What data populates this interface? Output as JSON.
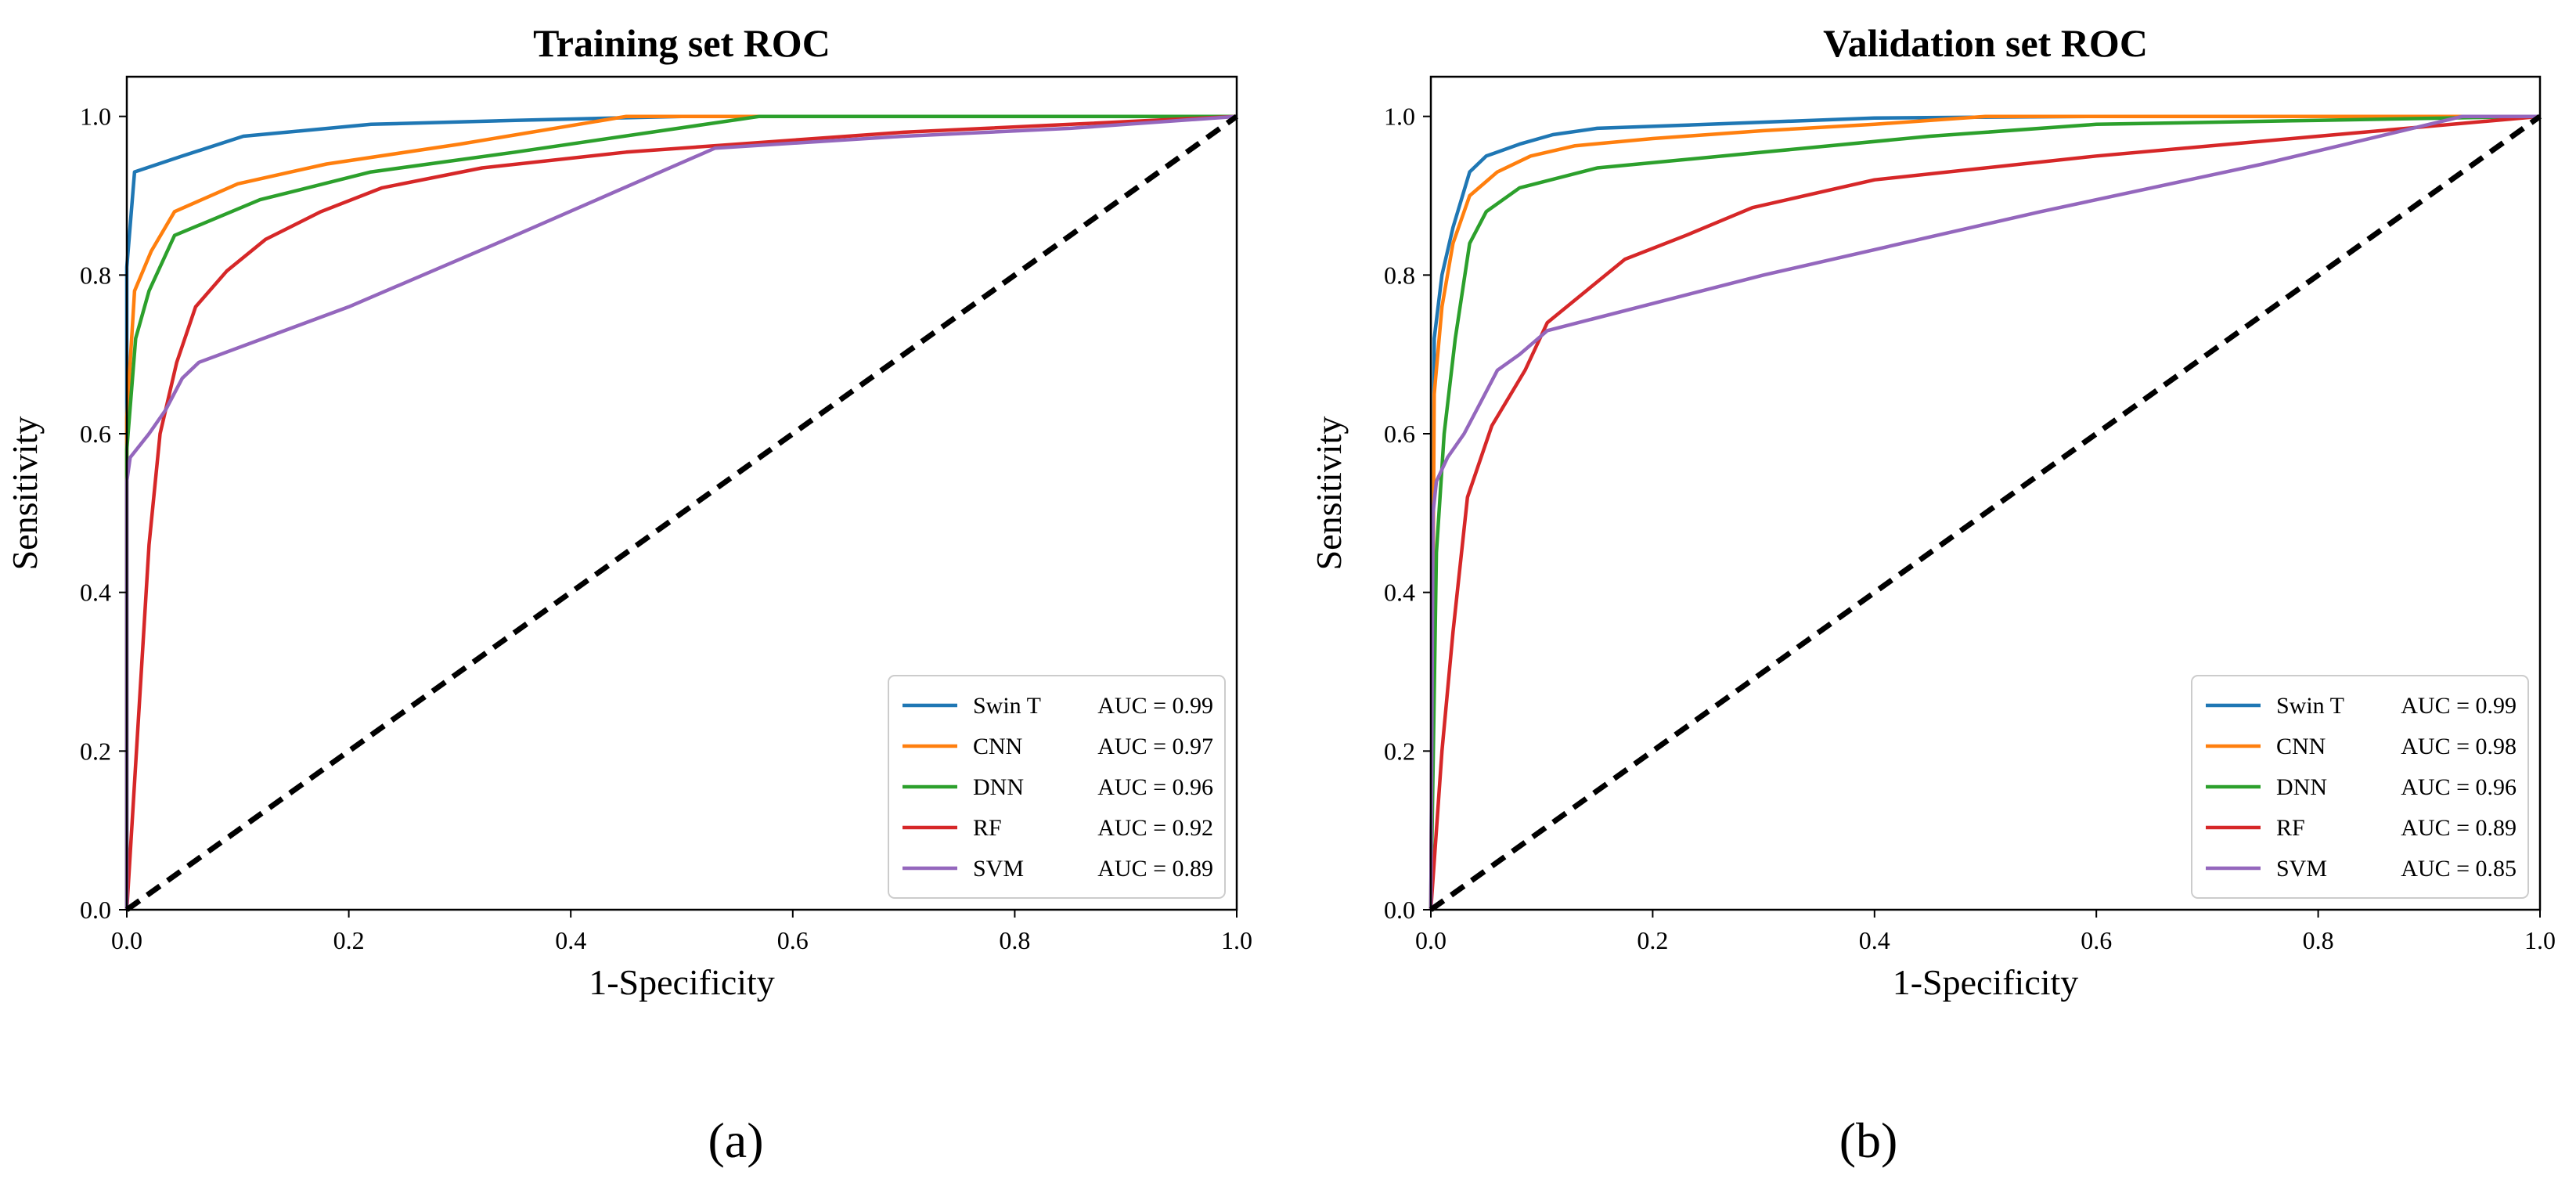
{
  "colors": {
    "swin_t": "#1f77b4",
    "cnn": "#ff7f0e",
    "dnn": "#2ca02c",
    "rf": "#d62728",
    "svm": "#9467bd",
    "diagonal": "#000000"
  },
  "panels": [
    {
      "caption": "(a)",
      "legend_position": "lower-right"
    },
    {
      "caption": "(b)",
      "legend_position": "lower-right"
    }
  ],
  "chart_data": [
    {
      "type": "line",
      "title": "Training set ROC",
      "xlabel": "1-Specificity",
      "ylabel": "Sensitivity",
      "xlim": [
        0.0,
        1.0
      ],
      "ylim": [
        0.0,
        1.05
      ],
      "xticks": [
        "0.0",
        "0.2",
        "0.4",
        "0.6",
        "0.8",
        "1.0"
      ],
      "yticks": [
        "0.0",
        "0.2",
        "0.4",
        "0.6",
        "0.8",
        "1.0"
      ],
      "grid": false,
      "legend_position": "lower-right",
      "series": [
        {
          "name": "Swin T",
          "auc_label": "AUC = 0.99",
          "color_key": "swin_t",
          "x": [
            0.0,
            0.0,
            0.007,
            0.05,
            0.105,
            0.22,
            0.35,
            0.5,
            1.0
          ],
          "y": [
            0.0,
            0.81,
            0.93,
            0.95,
            0.975,
            0.99,
            0.995,
            1.0,
            1.0
          ]
        },
        {
          "name": "CNN",
          "auc_label": "AUC = 0.97",
          "color_key": "cnn",
          "x": [
            0.0,
            0.0,
            0.007,
            0.022,
            0.043,
            0.1,
            0.18,
            0.3,
            0.45,
            0.6,
            1.0
          ],
          "y": [
            0.0,
            0.62,
            0.78,
            0.83,
            0.88,
            0.915,
            0.94,
            0.965,
            1.0,
            1.0,
            1.0
          ]
        },
        {
          "name": "DNN",
          "auc_label": "AUC = 0.96",
          "color_key": "dnn",
          "x": [
            0.0,
            0.0,
            0.008,
            0.02,
            0.043,
            0.12,
            0.22,
            0.35,
            0.57,
            0.7,
            1.0
          ],
          "y": [
            0.0,
            0.58,
            0.72,
            0.78,
            0.85,
            0.895,
            0.93,
            0.955,
            1.0,
            1.0,
            1.0
          ]
        },
        {
          "name": "RF",
          "auc_label": "AUC = 0.92",
          "color_key": "rf",
          "x": [
            0.0,
            0.02,
            0.03,
            0.045,
            0.062,
            0.09,
            0.125,
            0.175,
            0.23,
            0.32,
            0.45,
            0.55,
            0.7,
            1.0
          ],
          "y": [
            0.0,
            0.46,
            0.6,
            0.69,
            0.76,
            0.805,
            0.845,
            0.88,
            0.91,
            0.935,
            0.955,
            0.965,
            0.98,
            1.0
          ]
        },
        {
          "name": "SVM",
          "auc_label": "AUC = 0.89",
          "color_key": "svm",
          "x": [
            0.0,
            0.0,
            0.003,
            0.02,
            0.035,
            0.05,
            0.065,
            0.2,
            0.35,
            0.53,
            0.7,
            0.85,
            1.0
          ],
          "y": [
            0.0,
            0.54,
            0.57,
            0.6,
            0.63,
            0.67,
            0.69,
            0.76,
            0.85,
            0.96,
            0.975,
            0.985,
            1.0
          ]
        },
        {
          "name": "",
          "color_key": "diagonal",
          "dashed": true,
          "x": [
            0.0,
            1.0
          ],
          "y": [
            0.0,
            1.0
          ]
        }
      ]
    },
    {
      "type": "line",
      "title": "Validation set ROC",
      "xlabel": "1-Specificity",
      "ylabel": "Sensitivity",
      "xlim": [
        0.0,
        1.0
      ],
      "ylim": [
        0.0,
        1.05
      ],
      "xticks": [
        "0.0",
        "0.2",
        "0.4",
        "0.6",
        "0.8",
        "1.0"
      ],
      "yticks": [
        "0.0",
        "0.2",
        "0.4",
        "0.6",
        "0.8",
        "1.0"
      ],
      "grid": false,
      "legend_position": "lower-right",
      "series": [
        {
          "name": "Swin T",
          "auc_label": "AUC = 0.99",
          "color_key": "swin_t",
          "x": [
            0.0,
            0.003,
            0.01,
            0.02,
            0.035,
            0.05,
            0.08,
            0.11,
            0.15,
            0.25,
            0.4,
            0.6,
            1.0
          ],
          "y": [
            0.0,
            0.72,
            0.8,
            0.86,
            0.93,
            0.95,
            0.965,
            0.977,
            0.985,
            0.99,
            0.998,
            1.0,
            1.0
          ]
        },
        {
          "name": "CNN",
          "auc_label": "AUC = 0.98",
          "color_key": "cnn",
          "x": [
            0.0,
            0.003,
            0.01,
            0.02,
            0.035,
            0.06,
            0.09,
            0.13,
            0.2,
            0.3,
            0.4,
            0.5,
            1.0
          ],
          "y": [
            0.0,
            0.65,
            0.76,
            0.84,
            0.9,
            0.93,
            0.95,
            0.963,
            0.972,
            0.982,
            0.99,
            1.0,
            1.0
          ]
        },
        {
          "name": "DNN",
          "auc_label": "AUC = 0.96",
          "color_key": "dnn",
          "x": [
            0.0,
            0.005,
            0.012,
            0.022,
            0.035,
            0.05,
            0.08,
            0.15,
            0.3,
            0.45,
            0.6,
            0.8,
            1.0
          ],
          "y": [
            0.0,
            0.45,
            0.6,
            0.72,
            0.84,
            0.88,
            0.91,
            0.935,
            0.955,
            0.975,
            0.99,
            0.995,
            1.0
          ]
        },
        {
          "name": "RF",
          "auc_label": "AUC = 0.89",
          "color_key": "rf",
          "x": [
            0.0,
            0.01,
            0.02,
            0.033,
            0.055,
            0.085,
            0.105,
            0.14,
            0.175,
            0.23,
            0.29,
            0.4,
            0.6,
            0.8,
            1.0
          ],
          "y": [
            0.0,
            0.2,
            0.35,
            0.52,
            0.61,
            0.68,
            0.74,
            0.78,
            0.82,
            0.85,
            0.885,
            0.92,
            0.95,
            0.975,
            1.0
          ]
        },
        {
          "name": "SVM",
          "auc_label": "AUC = 0.85",
          "color_key": "svm",
          "x": [
            0.0,
            0.002,
            0.005,
            0.015,
            0.03,
            0.045,
            0.06,
            0.08,
            0.105,
            0.3,
            0.55,
            0.75,
            0.93,
            1.0
          ],
          "y": [
            0.0,
            0.5,
            0.54,
            0.57,
            0.6,
            0.64,
            0.68,
            0.7,
            0.73,
            0.8,
            0.88,
            0.94,
            1.0,
            1.0
          ]
        },
        {
          "name": "",
          "color_key": "diagonal",
          "dashed": true,
          "x": [
            0.0,
            1.0
          ],
          "y": [
            0.0,
            1.0
          ]
        }
      ]
    }
  ]
}
